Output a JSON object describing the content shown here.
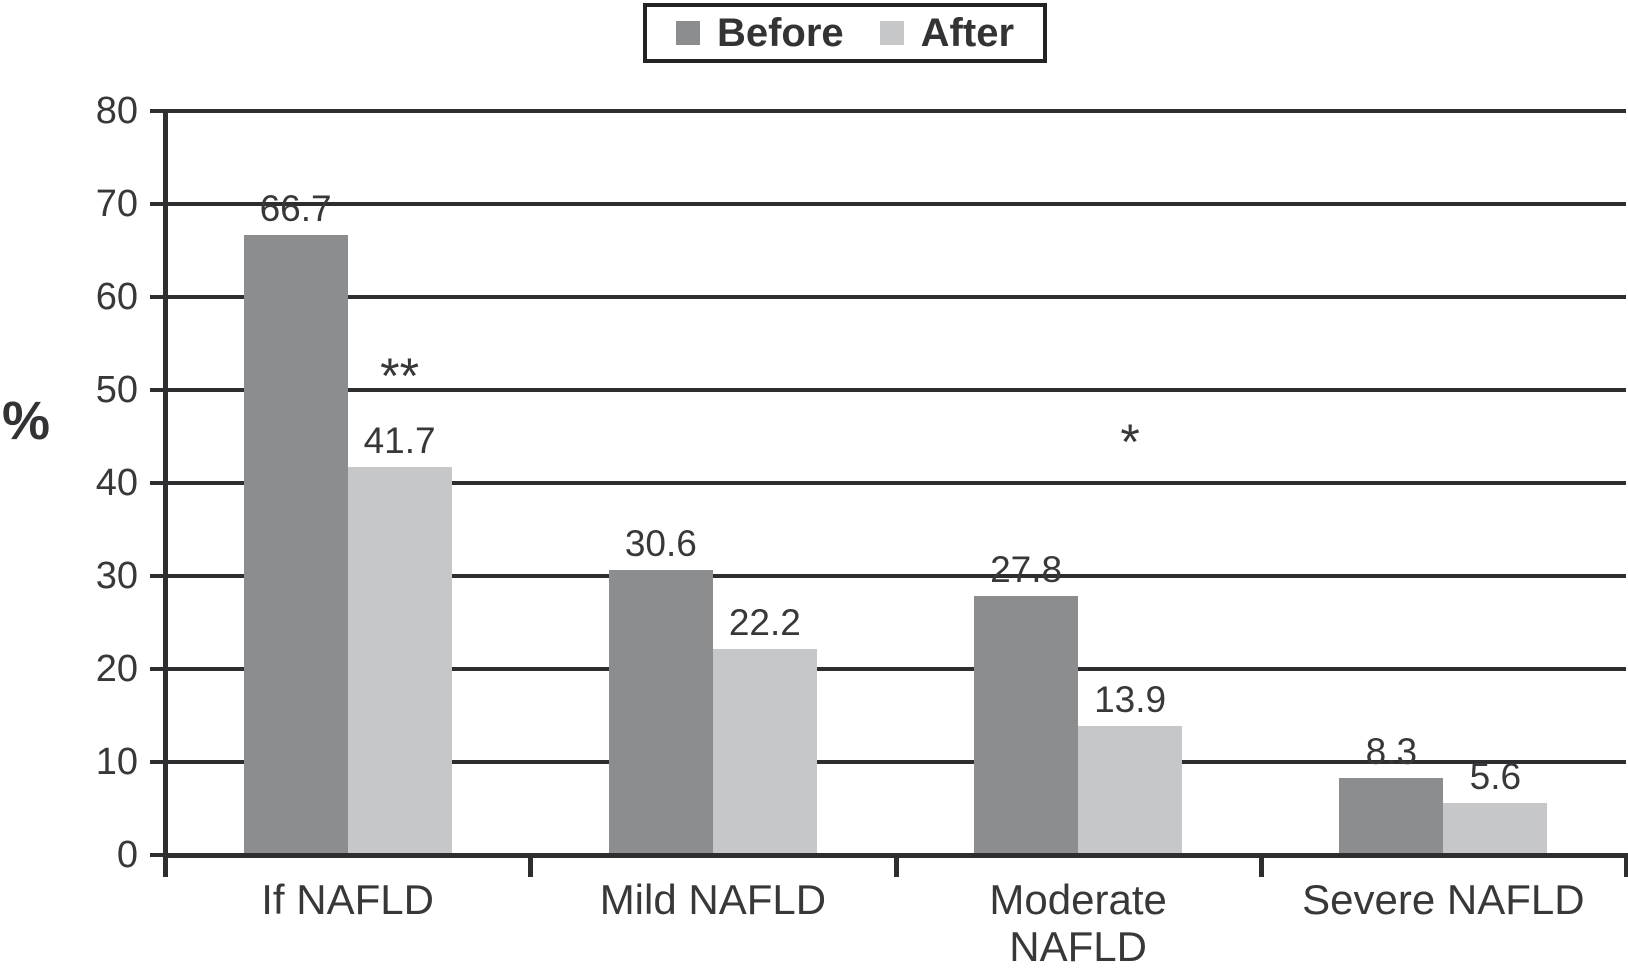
{
  "chart_data": {
    "type": "bar",
    "title": "",
    "ylabel": "%",
    "xlabel": "",
    "ylim": [
      0,
      80
    ],
    "ytick_step": 10,
    "grid": true,
    "legend_position": "top",
    "categories": [
      "If NAFLD",
      "Mild NAFLD",
      "Moderate\nNAFLD",
      "Severe NAFLD"
    ],
    "series": [
      {
        "name": "Before",
        "color": "#8b8d8f",
        "values": [
          66.7,
          30.6,
          27.8,
          8.3
        ]
      },
      {
        "name": "After",
        "color": "#c6c7c9",
        "values": [
          41.7,
          22.2,
          13.9,
          5.6
        ]
      }
    ],
    "value_labels": true,
    "annotations": [
      {
        "text": "**",
        "series": "After",
        "category_index": 0,
        "y_value": 52
      },
      {
        "text": "*",
        "series": "After",
        "category_index": 2,
        "y_value": 45
      }
    ],
    "colors": {
      "axis": "#2e2e30",
      "text": "#38383a",
      "background": "#ffffff"
    }
  },
  "legend": {
    "before_label": "Before",
    "after_label": "After"
  }
}
